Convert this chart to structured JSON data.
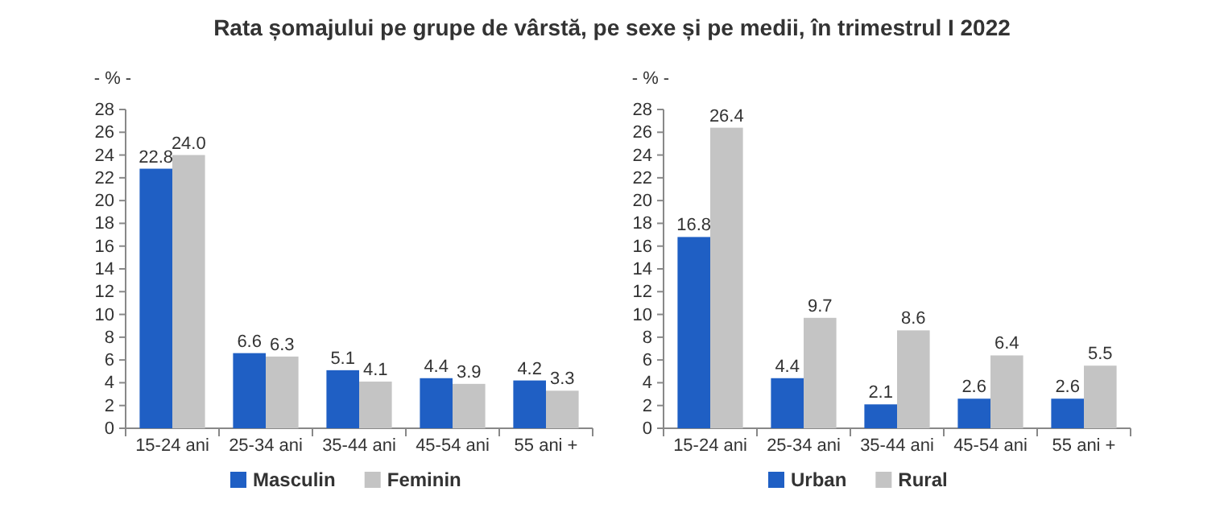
{
  "chart_data": [
    {
      "type": "bar",
      "title": "Rata șomajului pe grupe de vârstă, pe sexe și pe medii, în trimestrul I 2022",
      "ylabel": "- % -",
      "categories": [
        "15-24 ani",
        "25-34 ani",
        "35-44 ani",
        "45-54 ani",
        "55 ani +"
      ],
      "series": [
        {
          "name": "Masculin",
          "color": "#1f5fc4",
          "values": [
            22.8,
            6.6,
            5.1,
            4.4,
            4.2
          ],
          "value_labels": [
            "22.8",
            "6.6",
            "5.1",
            "4.4",
            "4.2"
          ]
        },
        {
          "name": "Feminin",
          "color": "#c4c4c4",
          "values": [
            24.0,
            6.3,
            4.1,
            3.9,
            3.3
          ],
          "value_labels": [
            "24.0",
            "6.3",
            "4.1",
            "3.9",
            "3.3"
          ]
        }
      ],
      "ylim": [
        0,
        28
      ],
      "yticks": [
        0,
        2,
        4,
        6,
        8,
        10,
        12,
        14,
        16,
        18,
        20,
        22,
        24,
        26,
        28
      ],
      "legend": "bottom",
      "grid": false
    },
    {
      "type": "bar",
      "ylabel": "- % -",
      "categories": [
        "15-24 ani",
        "25-34 ani",
        "35-44 ani",
        "45-54 ani",
        "55 ani +"
      ],
      "series": [
        {
          "name": "Urban",
          "color": "#1f5fc4",
          "values": [
            16.8,
            4.4,
            2.1,
            2.6,
            2.6
          ],
          "value_labels": [
            "16.8",
            "4.4",
            "2.1",
            "2.6",
            "2.6"
          ]
        },
        {
          "name": "Rural",
          "color": "#c4c4c4",
          "values": [
            26.4,
            9.7,
            8.6,
            6.4,
            5.5
          ],
          "value_labels": [
            "26.4",
            "9.7",
            "8.6",
            "6.4",
            "5.5"
          ]
        }
      ],
      "ylim": [
        0,
        28
      ],
      "yticks": [
        0,
        2,
        4,
        6,
        8,
        10,
        12,
        14,
        16,
        18,
        20,
        22,
        24,
        26,
        28
      ],
      "legend": "bottom",
      "grid": false
    }
  ]
}
